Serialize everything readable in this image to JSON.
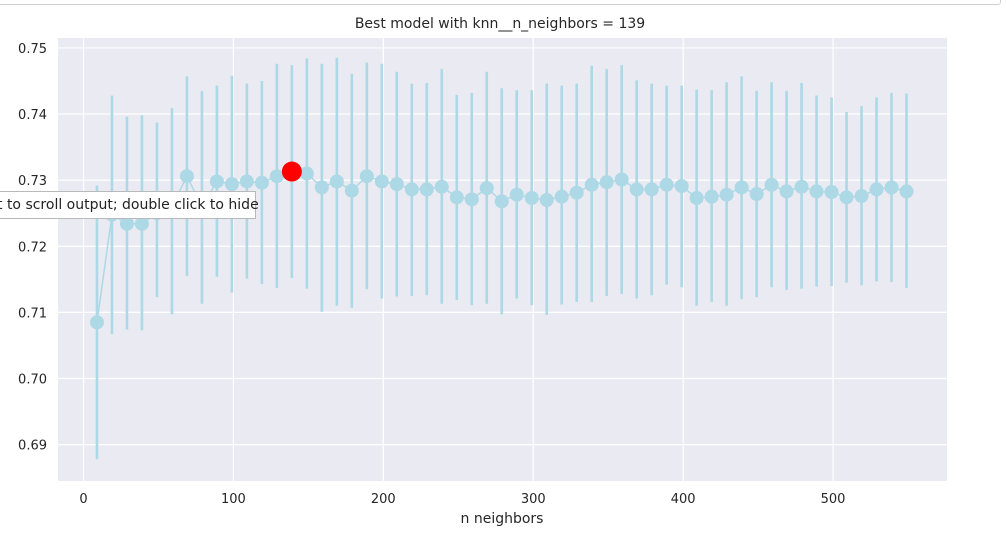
{
  "tooltip_text": "t to scroll output; double click to hide",
  "chart_data": {
    "type": "scatter",
    "title": "Best model with knn__n_neighbors = 139",
    "xlabel": "n neighbors",
    "ylabel": "",
    "xlim": [
      -17,
      576
    ],
    "ylim": [
      0.6845,
      0.7515
    ],
    "xticks": [
      0,
      100,
      200,
      300,
      400,
      500
    ],
    "yticks": [
      0.69,
      0.7,
      0.71,
      0.72,
      0.73,
      0.74,
      0.75
    ],
    "grid": true,
    "colors": {
      "points": "#add8e6",
      "errorbars": "#add8e6",
      "best": "#ff0000",
      "background": "#eaeaf2",
      "grid": "#ffffff"
    },
    "x": [
      9,
      19,
      29,
      39,
      49,
      59,
      69,
      79,
      89,
      99,
      109,
      119,
      129,
      139,
      149,
      159,
      169,
      179,
      189,
      199,
      209,
      219,
      229,
      239,
      249,
      259,
      269,
      279,
      289,
      299,
      309,
      319,
      329,
      339,
      349,
      359,
      369,
      379,
      389,
      399,
      409,
      419,
      429,
      439,
      449,
      459,
      469,
      479,
      489,
      499,
      509,
      519,
      529,
      539,
      549
    ],
    "mean": [
      0.7085,
      0.7248,
      0.7234,
      0.7234,
      0.725,
      0.726,
      0.7306,
      0.726,
      0.7298,
      0.7294,
      0.7298,
      0.7296,
      0.7306,
      0.7313,
      0.731,
      0.7289,
      0.7298,
      0.7284,
      0.7306,
      0.7298,
      0.7294,
      0.7286,
      0.7286,
      0.729,
      0.7274,
      0.7271,
      0.7288,
      0.7268,
      0.7278,
      0.7273,
      0.727,
      0.7275,
      0.7281,
      0.7293,
      0.7297,
      0.7301,
      0.7286,
      0.7286,
      0.7293,
      0.7291,
      0.7273,
      0.7275,
      0.7278,
      0.7289,
      0.7279,
      0.7293,
      0.7283,
      0.729,
      0.7283,
      0.7282,
      0.7274,
      0.7276,
      0.7286,
      0.7289,
      0.7283
    ],
    "upper": [
      0.7292,
      0.7428,
      0.7396,
      0.7398,
      0.7387,
      0.7409,
      0.7457,
      0.7435,
      0.7443,
      0.7458,
      0.7446,
      0.745,
      0.7476,
      0.7474,
      0.7484,
      0.7476,
      0.7485,
      0.7461,
      0.7478,
      0.7476,
      0.7464,
      0.7446,
      0.7447,
      0.7468,
      0.7429,
      0.7432,
      0.7464,
      0.7439,
      0.7436,
      0.7436,
      0.7446,
      0.7443,
      0.7446,
      0.7473,
      0.7468,
      0.7474,
      0.7451,
      0.7446,
      0.7443,
      0.7443,
      0.7437,
      0.7436,
      0.7448,
      0.7457,
      0.7435,
      0.7448,
      0.7435,
      0.7447,
      0.7428,
      0.7425,
      0.7403,
      0.7412,
      0.7425,
      0.7432,
      0.7431
    ],
    "lower": [
      0.6878,
      0.7067,
      0.7074,
      0.7073,
      0.7123,
      0.7097,
      0.7155,
      0.7113,
      0.7154,
      0.713,
      0.7151,
      0.7143,
      0.7137,
      0.7152,
      0.7136,
      0.7101,
      0.711,
      0.7107,
      0.7135,
      0.7121,
      0.7124,
      0.7125,
      0.7126,
      0.7113,
      0.7119,
      0.7111,
      0.7113,
      0.7097,
      0.7121,
      0.7111,
      0.7096,
      0.7112,
      0.7116,
      0.7116,
      0.7125,
      0.7128,
      0.7121,
      0.7126,
      0.7142,
      0.7138,
      0.711,
      0.7116,
      0.711,
      0.712,
      0.7123,
      0.7138,
      0.7134,
      0.7136,
      0.7139,
      0.714,
      0.7145,
      0.7141,
      0.7147,
      0.7146,
      0.7137
    ],
    "best": {
      "x": 139,
      "y": 0.7313
    }
  }
}
